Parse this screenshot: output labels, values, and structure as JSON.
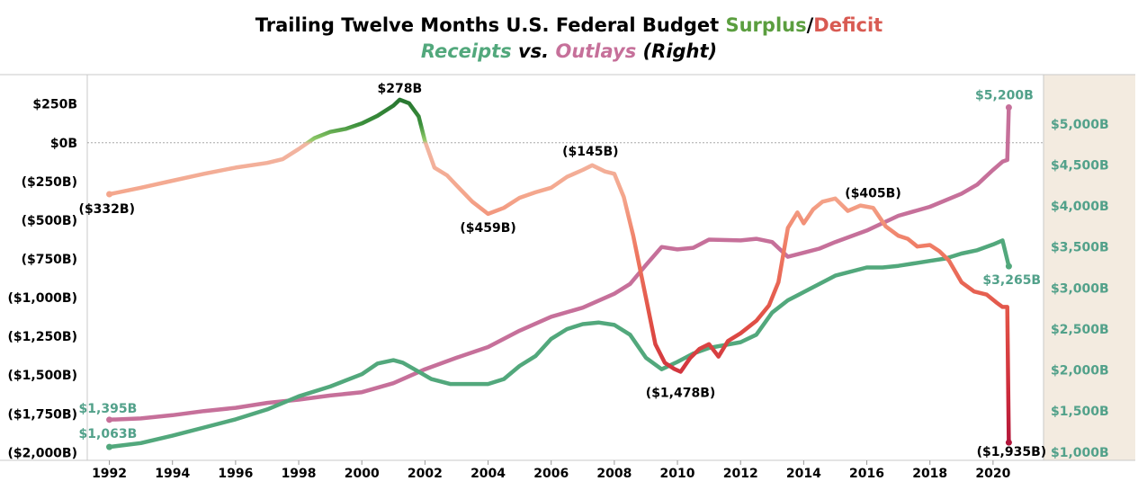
{
  "header": {
    "title_main": "Trailing Twelve Months U.S. Federal Budget",
    "title_surplus": "Surplus",
    "title_slash": "/",
    "title_deficit": "Deficit",
    "sub_receipts": "Receipts",
    "sub_vs": " vs. ",
    "sub_outlays": "Outlays",
    "sub_right": " (Right)"
  },
  "colors": {
    "receipts": "#52a87c",
    "outlays": "#c6709a",
    "surplus": "#3e9a3e",
    "deficit": "#d8524b",
    "right_axis_bg": "#f3ebe0",
    "right_tick": "#52a18a"
  },
  "chart_data": {
    "type": "line",
    "x_range": [
      1991.3,
      2021.6
    ],
    "x_ticks": [
      "1992",
      "1994",
      "1996",
      "1998",
      "2000",
      "2002",
      "2004",
      "2006",
      "2008",
      "2010",
      "2012",
      "2014",
      "2016",
      "2018",
      "2020"
    ],
    "left_axis": {
      "ylim": [
        -2050,
        440
      ],
      "ticks": [
        250,
        0,
        -250,
        -500,
        -750,
        -1000,
        -1250,
        -1500,
        -1750,
        -2000
      ],
      "tick_labels": [
        "$250B",
        "$0B",
        "($250B)",
        "($500B)",
        "($750B)",
        "($1,000B)",
        "($1,250B)",
        "($1,500B)",
        "($1,750B)",
        "($2,000B)"
      ]
    },
    "right_axis": {
      "ylim": [
        900,
        5600
      ],
      "ticks": [
        5000,
        4500,
        4000,
        3500,
        3000,
        2500,
        2000,
        1500,
        1000
      ],
      "tick_labels": [
        "$5,000B",
        "$4,500B",
        "$4,000B",
        "$3,500B",
        "$3,000B",
        "$2,500B",
        "$2,000B",
        "$1,500B",
        "$1,000B"
      ]
    },
    "series": [
      {
        "name": "Surplus/Deficit",
        "axis": "left",
        "x": [
          1992.0,
          1993.0,
          1994.0,
          1995.0,
          1996.0,
          1997.0,
          1997.5,
          1998.0,
          1998.5,
          1999.0,
          1999.5,
          2000.0,
          2000.5,
          2001.0,
          2001.2,
          2001.5,
          2001.8,
          2002.0,
          2002.3,
          2002.7,
          2003.0,
          2003.5,
          2004.0,
          2004.5,
          2005.0,
          2005.5,
          2006.0,
          2006.5,
          2007.0,
          2007.3,
          2007.7,
          2008.0,
          2008.3,
          2008.6,
          2009.0,
          2009.3,
          2009.6,
          2009.9,
          2010.1,
          2010.4,
          2010.7,
          2011.0,
          2011.3,
          2011.6,
          2012.0,
          2012.5,
          2012.9,
          2013.2,
          2013.5,
          2013.8,
          2014.0,
          2014.3,
          2014.6,
          2015.0,
          2015.4,
          2015.8,
          2016.2,
          2016.6,
          2017.0,
          2017.3,
          2017.6,
          2018.0,
          2018.3,
          2018.6,
          2019.0,
          2019.4,
          2019.8,
          2020.1,
          2020.3,
          2020.45,
          2020.5
        ],
        "y": [
          -332,
          -290,
          -245,
          -200,
          -160,
          -130,
          -105,
          -40,
          30,
          70,
          90,
          125,
          175,
          240,
          278,
          255,
          170,
          10,
          -160,
          -210,
          -275,
          -380,
          -459,
          -420,
          -355,
          -320,
          -290,
          -220,
          -175,
          -145,
          -185,
          -200,
          -350,
          -600,
          -1000,
          -1300,
          -1420,
          -1460,
          -1478,
          -1390,
          -1330,
          -1300,
          -1380,
          -1280,
          -1230,
          -1150,
          -1050,
          -900,
          -550,
          -450,
          -520,
          -430,
          -380,
          -360,
          -440,
          -405,
          -420,
          -540,
          -600,
          -620,
          -670,
          -660,
          -700,
          -760,
          -900,
          -960,
          -980,
          -1030,
          -1060,
          -1060,
          -1935
        ]
      },
      {
        "name": "Receipts",
        "axis": "right",
        "x": [
          1992.0,
          1993.0,
          1994.0,
          1995.0,
          1996.0,
          1997.0,
          1998.0,
          1999.0,
          2000.0,
          2000.5,
          2001.0,
          2001.3,
          2001.8,
          2002.2,
          2002.8,
          2003.5,
          2004.0,
          2004.5,
          2005.0,
          2005.5,
          2006.0,
          2006.5,
          2007.0,
          2007.5,
          2008.0,
          2008.5,
          2009.0,
          2009.5,
          2010.0,
          2010.5,
          2011.0,
          2012.0,
          2012.5,
          2013.0,
          2013.5,
          2014.0,
          2015.0,
          2016.0,
          2016.5,
          2017.0,
          2018.0,
          2018.5,
          2019.0,
          2019.5,
          2020.0,
          2020.3,
          2020.5
        ],
        "y": [
          1063,
          1110,
          1200,
          1300,
          1400,
          1520,
          1680,
          1800,
          1950,
          2080,
          2120,
          2090,
          1980,
          1890,
          1830,
          1830,
          1830,
          1890,
          2050,
          2170,
          2380,
          2500,
          2560,
          2580,
          2550,
          2430,
          2150,
          2010,
          2100,
          2200,
          2270,
          2340,
          2430,
          2700,
          2850,
          2950,
          3150,
          3250,
          3250,
          3270,
          3330,
          3360,
          3420,
          3460,
          3530,
          3580,
          3265
        ]
      },
      {
        "name": "Outlays",
        "axis": "right",
        "x": [
          1992.0,
          1993.0,
          1994.0,
          1995.0,
          1996.0,
          1997.0,
          1998.0,
          1999.0,
          2000.0,
          2001.0,
          2002.0,
          2003.0,
          2004.0,
          2005.0,
          2006.0,
          2007.0,
          2008.0,
          2008.5,
          2009.0,
          2009.5,
          2010.0,
          2010.5,
          2011.0,
          2012.0,
          2012.5,
          2013.0,
          2013.5,
          2014.0,
          2014.5,
          2015.0,
          2016.0,
          2017.0,
          2018.0,
          2019.0,
          2019.5,
          2020.0,
          2020.3,
          2020.45,
          2020.5
        ],
        "y": [
          1395,
          1410,
          1450,
          1500,
          1540,
          1600,
          1640,
          1690,
          1730,
          1840,
          2010,
          2150,
          2280,
          2480,
          2650,
          2760,
          2930,
          3050,
          3280,
          3500,
          3470,
          3490,
          3590,
          3580,
          3600,
          3560,
          3380,
          3430,
          3480,
          3560,
          3700,
          3880,
          3990,
          4150,
          4260,
          4440,
          4540,
          4560,
          5200
        ]
      }
    ],
    "annotations": [
      {
        "text": "$278B",
        "series": "Surplus/Deficit",
        "x": 2001.2,
        "y": 278,
        "color": "#000000"
      },
      {
        "text": "($332B)",
        "series": "Surplus/Deficit",
        "x": 1992.0,
        "y": -332,
        "color": "#000000"
      },
      {
        "text": "($459B)",
        "series": "Surplus/Deficit",
        "x": 2004.0,
        "y": -459,
        "color": "#000000"
      },
      {
        "text": "($145B)",
        "series": "Surplus/Deficit",
        "x": 2007.3,
        "y": -145,
        "color": "#000000"
      },
      {
        "text": "($1,478B)",
        "series": "Surplus/Deficit",
        "x": 2010.1,
        "y": -1478,
        "color": "#000000"
      },
      {
        "text": "($405B)",
        "series": "Surplus/Deficit",
        "x": 2015.8,
        "y": -405,
        "color": "#000000"
      },
      {
        "text": "($1,935B)",
        "series": "Surplus/Deficit",
        "x": 2020.5,
        "y": -1935,
        "color": "#000000"
      },
      {
        "text": "$5,200B",
        "series": "Outlays",
        "x": 2020.5,
        "y": 5200,
        "color": "#52a18a"
      },
      {
        "text": "$3,265B",
        "series": "Receipts",
        "x": 2020.5,
        "y": 3265,
        "color": "#52a18a"
      },
      {
        "text": "$1,395B",
        "series": "Outlays",
        "x": 1992.0,
        "y": 1395,
        "color": "#52a18a"
      },
      {
        "text": "$1,063B",
        "series": "Receipts",
        "x": 1992.0,
        "y": 1063,
        "color": "#52a18a"
      }
    ],
    "zero_line": true,
    "grid": false
  }
}
